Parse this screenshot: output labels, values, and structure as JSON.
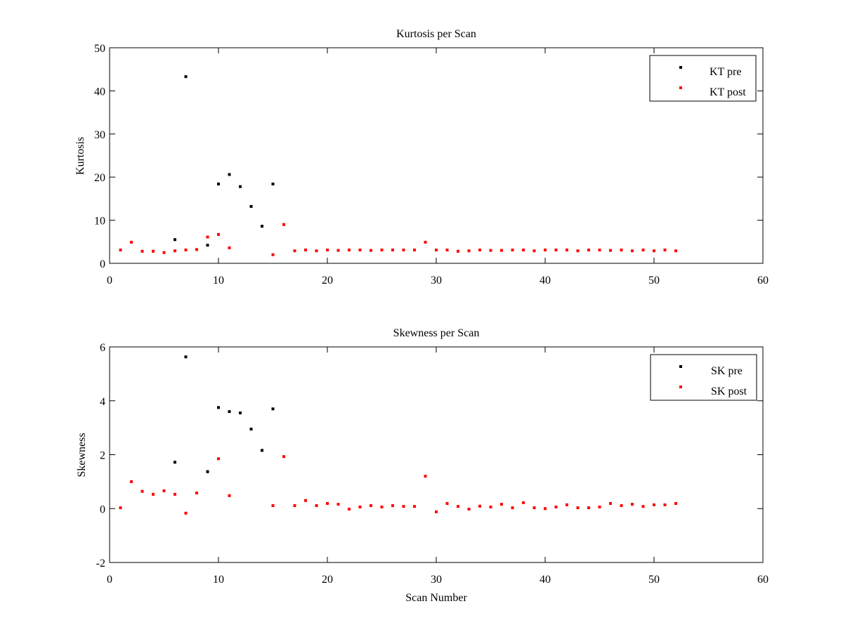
{
  "chart_data": [
    {
      "type": "scatter",
      "title": "Kurtosis per Scan",
      "xlabel": "",
      "ylabel": "Kurtosis",
      "xlim": [
        0,
        60
      ],
      "ylim": [
        0,
        50
      ],
      "xticks": [
        0,
        10,
        20,
        30,
        40,
        50,
        60
      ],
      "yticks": [
        0,
        10,
        20,
        30,
        40,
        50
      ],
      "legend": "top-right",
      "grid": false,
      "series": [
        {
          "name": "KT pre",
          "color": "#000000",
          "x": [
            6,
            7,
            9,
            10,
            11,
            12,
            13,
            14,
            15
          ],
          "y": [
            5.5,
            43.3,
            4.2,
            18.4,
            20.6,
            17.8,
            13.2,
            8.6,
            18.4
          ]
        },
        {
          "name": "KT post",
          "color": "#ff0000",
          "x": [
            1,
            2,
            3,
            4,
            5,
            6,
            7,
            8,
            9,
            10,
            11,
            15,
            16,
            17,
            18,
            19,
            20,
            21,
            22,
            23,
            24,
            25,
            26,
            27,
            28,
            29,
            30,
            31,
            32,
            33,
            34,
            35,
            36,
            37,
            38,
            39,
            40,
            41,
            42,
            43,
            44,
            45,
            46,
            47,
            48,
            49,
            50,
            51,
            52
          ],
          "y": [
            3.1,
            4.9,
            2.8,
            2.8,
            2.5,
            2.9,
            3.1,
            3.2,
            6.1,
            6.7,
            3.6,
            2.0,
            9.0,
            2.9,
            3.1,
            2.9,
            3.1,
            3.0,
            3.1,
            3.1,
            3.0,
            3.1,
            3.1,
            3.1,
            3.1,
            4.9,
            3.1,
            3.1,
            2.8,
            2.9,
            3.1,
            3.0,
            3.0,
            3.1,
            3.1,
            2.9,
            3.1,
            3.1,
            3.1,
            2.9,
            3.1,
            3.1,
            3.0,
            3.1,
            2.9,
            3.1,
            2.9,
            3.1,
            2.9
          ]
        }
      ]
    },
    {
      "type": "scatter",
      "title": "Skewness per Scan",
      "xlabel": "Scan Number",
      "ylabel": "Skewness",
      "xlim": [
        0,
        60
      ],
      "ylim": [
        -2,
        6
      ],
      "xticks": [
        0,
        10,
        20,
        30,
        40,
        50,
        60
      ],
      "yticks": [
        -2,
        0,
        2,
        4,
        6
      ],
      "legend": "top-right",
      "grid": false,
      "series": [
        {
          "name": "SK pre",
          "color": "#000000",
          "x": [
            6,
            7,
            9,
            10,
            11,
            12,
            13,
            14,
            15
          ],
          "y": [
            1.72,
            5.63,
            1.37,
            3.75,
            3.6,
            3.55,
            2.95,
            2.16,
            3.7
          ]
        },
        {
          "name": "SK post",
          "color": "#ff0000",
          "x": [
            1,
            2,
            3,
            4,
            5,
            6,
            7,
            8,
            9,
            10,
            11,
            15,
            16,
            17,
            18,
            19,
            20,
            21,
            22,
            23,
            24,
            25,
            26,
            27,
            28,
            29,
            30,
            31,
            32,
            33,
            34,
            35,
            36,
            37,
            38,
            39,
            40,
            41,
            42,
            43,
            44,
            45,
            46,
            47,
            48,
            49,
            50,
            51,
            52
          ],
          "y": [
            0.03,
            1.0,
            0.64,
            0.53,
            0.66,
            0.53,
            -0.17,
            0.58,
            1.37,
            1.85,
            0.48,
            0.11,
            1.93,
            0.11,
            0.3,
            0.11,
            0.19,
            0.16,
            -0.02,
            0.06,
            0.11,
            0.06,
            0.11,
            0.08,
            0.08,
            1.2,
            -0.12,
            0.19,
            0.08,
            -0.02,
            0.09,
            0.06,
            0.16,
            0.03,
            0.22,
            0.03,
            0.0,
            0.06,
            0.14,
            0.03,
            0.03,
            0.06,
            0.19,
            0.11,
            0.16,
            0.08,
            0.14,
            0.14,
            0.19
          ]
        }
      ]
    }
  ]
}
